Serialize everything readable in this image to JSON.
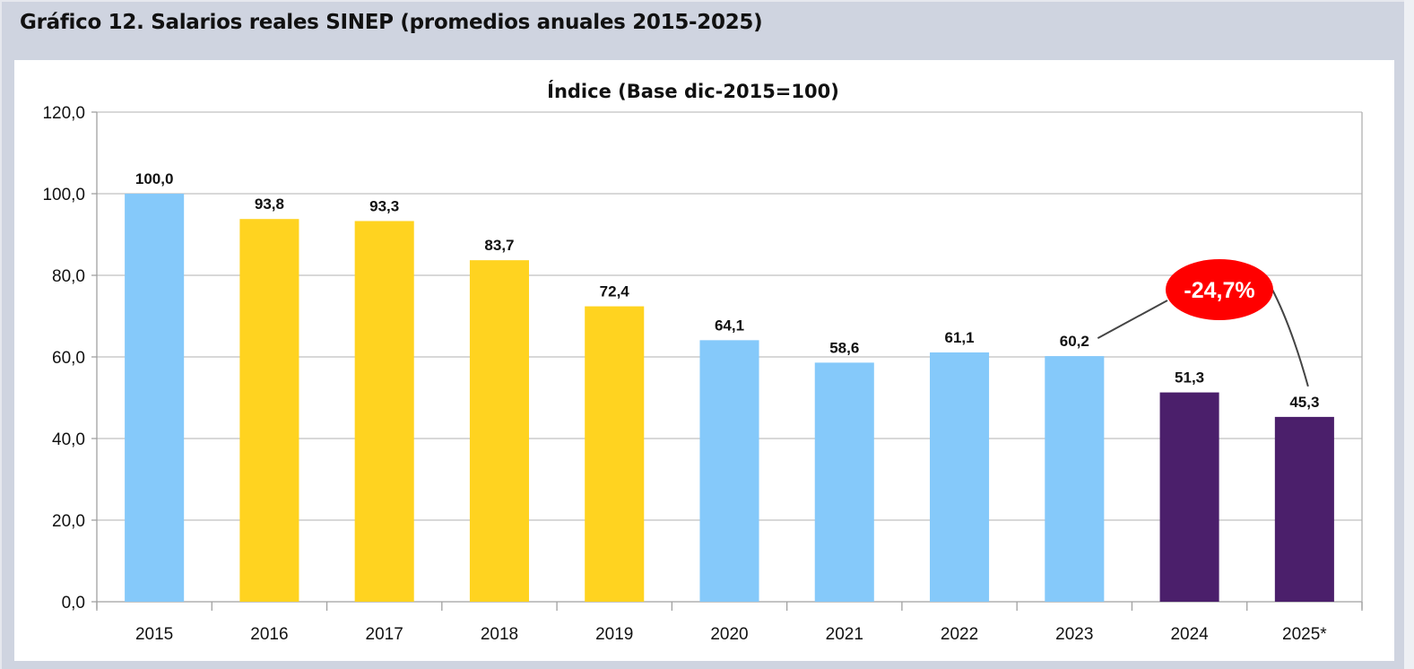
{
  "header": {
    "title": "Gráfico 12.  Salarios reales SINEP (promedios anuales 2015-2025)"
  },
  "colors": {
    "light_blue": "#85c9fa",
    "yellow": "#ffd320",
    "purple": "#4b1f6b",
    "callout_red": "#ff0000",
    "grid": "#c0c0c0",
    "panel_bg": "#cfd4e0"
  },
  "chart_data": {
    "type": "bar",
    "title": "Índice (Base dic-2015=100)",
    "xlabel": "",
    "ylabel": "",
    "ylim": [
      0,
      120
    ],
    "yticks": [
      0,
      20,
      40,
      60,
      80,
      100,
      120
    ],
    "ytick_labels": [
      "0,0",
      "20,0",
      "40,0",
      "60,0",
      "80,0",
      "100,0",
      "120,0"
    ],
    "grid": true,
    "legend": "none",
    "categories": [
      "2015",
      "2016",
      "2017",
      "2018",
      "2019",
      "2020",
      "2021",
      "2022",
      "2023",
      "2024",
      "2025*"
    ],
    "values": [
      100.0,
      93.8,
      93.3,
      83.7,
      72.4,
      64.1,
      58.6,
      61.1,
      60.2,
      51.3,
      45.3
    ],
    "value_labels": [
      "100,0",
      "93,8",
      "93,3",
      "83,7",
      "72,4",
      "64,1",
      "58,6",
      "61,1",
      "60,2",
      "51,3",
      "45,3"
    ],
    "bar_colors": [
      "light_blue",
      "yellow",
      "yellow",
      "yellow",
      "yellow",
      "light_blue",
      "light_blue",
      "light_blue",
      "light_blue",
      "purple",
      "purple"
    ],
    "annotations": [
      {
        "text": "-24,7%",
        "from_category": "2023",
        "to_category": "2025*",
        "shape": "red-ellipse-callout"
      }
    ]
  }
}
